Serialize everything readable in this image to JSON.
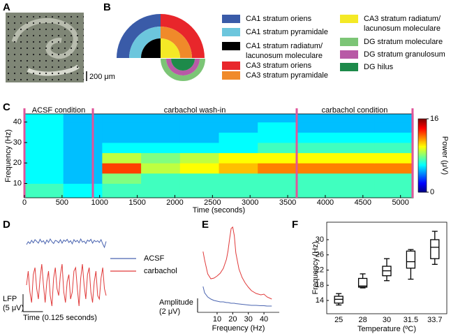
{
  "panels": {
    "a": "A",
    "b": "B",
    "c": "C",
    "d": "D",
    "e": "E",
    "f": "F"
  },
  "micrograph": {
    "scale_bar": "200 μm"
  },
  "regions": [
    {
      "lines": [
        "CA1 stratum oriens"
      ],
      "color": "#3a5ba8"
    },
    {
      "lines": [
        "CA1 stratum pyramidale"
      ],
      "color": "#6cc6dd"
    },
    {
      "lines": [
        "CA1 stratum radiatum/",
        "lacunosum moleculare"
      ],
      "color": "#000000"
    },
    {
      "lines": [
        "CA3 stratum oriens"
      ],
      "color": "#e8262b"
    },
    {
      "lines": [
        "CA3 stratum pyramidale"
      ],
      "color": "#f08a2a"
    },
    {
      "lines": [
        "CA3 stratum radiatum/",
        "lacunosum moleculare"
      ],
      "color": "#f4e926"
    },
    {
      "lines": [
        "DG stratum moleculare"
      ],
      "color": "#7cc576"
    },
    {
      "lines": [
        "DG stratum granulosum"
      ],
      "color": "#b85aa6"
    },
    {
      "lines": [
        "DG hilus"
      ],
      "color": "#1d8a4a"
    }
  ],
  "chart_data": [
    {
      "type": "heatmap",
      "xlabel": "Time (seconds)",
      "ylabel": "Frequency (Hz)",
      "x_bins": [
        0,
        517,
        1034,
        1551,
        2068,
        2585,
        3102,
        3619,
        4136,
        4653,
        5170
      ],
      "y_bins": [
        3,
        10,
        15,
        20,
        25,
        30,
        35,
        40,
        44
      ],
      "z": [
        [
          7,
          6,
          7,
          7,
          7,
          7,
          7,
          7,
          7,
          7
        ],
        [
          6,
          5,
          8,
          7,
          7,
          7,
          7,
          7,
          7,
          7
        ],
        [
          6,
          5,
          13,
          9,
          10,
          11,
          12,
          12,
          12,
          12
        ],
        [
          6,
          5,
          9,
          8,
          9,
          10,
          10,
          10,
          10,
          10
        ],
        [
          6,
          5,
          6,
          6,
          6,
          6,
          7,
          7,
          7,
          7
        ],
        [
          6,
          5,
          5,
          5,
          5,
          6,
          6,
          6,
          6,
          6
        ],
        [
          6,
          5,
          5,
          5,
          5,
          5,
          6,
          5,
          5,
          5
        ],
        [
          6,
          5,
          5,
          5,
          5,
          5,
          5,
          5,
          5,
          5
        ]
      ],
      "xlim": [
        0,
        5170
      ],
      "xticks": [
        0,
        500,
        1000,
        1500,
        2000,
        2500,
        3000,
        3500,
        4000,
        4500,
        5000
      ],
      "ylim": [
        3,
        44
      ],
      "yticks": [
        10,
        20,
        30,
        40
      ],
      "colormap": "jet",
      "clim": [
        0,
        16
      ],
      "cticks": [
        0,
        16
      ],
      "clabel": "Power (μV)",
      "markers": [
        0,
        910,
        3620,
        5160
      ],
      "marker_color": "#e0559a",
      "phases": [
        "ACSF condition",
        "carbachol wash-in",
        "carbachol condition"
      ]
    },
    {
      "type": "line",
      "xlim": [
        0,
        0.5
      ],
      "series": [
        {
          "name": "ACSF",
          "color": "#4a64b0",
          "values": [
            0,
            0.8,
            0.3,
            1.2,
            0.5,
            1.4,
            0.9,
            0.4,
            1.5,
            0.7,
            1.1,
            0.2,
            1.3,
            0.6,
            1.6,
            0.8,
            0.3,
            1.2,
            1.0,
            0.5,
            1.4,
            0.4,
            1.3,
            0.9,
            1.5,
            0.6,
            1.1,
            0.2,
            1.4,
            0.8,
            1.2,
            0.5,
            1.6,
            0.7,
            1.0,
            0.3,
            1.3,
            0.9,
            1.5,
            0.4,
            1.2,
            0.8,
            1.1,
            0.6,
            1.4,
            0.2,
            -0.8,
            0.9
          ]
        },
        {
          "name": "carbachol",
          "color": "#e03a3a",
          "values": [
            0,
            4,
            -2,
            -5,
            3,
            5,
            -1,
            -4,
            2,
            6,
            0,
            -5,
            1,
            4,
            -3,
            -6,
            2,
            5,
            -1,
            -3,
            3,
            6,
            -2,
            -5,
            1,
            3,
            -4,
            -2,
            4,
            5,
            -1,
            -6,
            2,
            6,
            0,
            -4,
            3,
            5,
            -2,
            -5,
            1,
            4,
            -3,
            -4,
            2,
            5,
            -1,
            -3
          ]
        }
      ],
      "y_scale_label": "LFP",
      "y_scale_bar": {
        "value": 5,
        "label": "(5 μV)"
      },
      "x_scale_bar": {
        "value": 0.125,
        "label": "Time (0.125 seconds)"
      }
    },
    {
      "type": "line",
      "xlabel": "Frequency (Hz)",
      "ylabel": "Amplitude",
      "x": [
        1,
        2,
        4,
        6,
        8,
        10,
        12,
        14,
        16,
        17,
        18,
        19,
        20,
        21,
        22,
        24,
        26,
        28,
        30,
        32,
        35,
        38,
        40,
        42,
        45
      ],
      "series": [
        {
          "color": "#4a64b0",
          "values": [
            3.7,
            2.8,
            2.2,
            1.9,
            1.7,
            1.6,
            1.5,
            1.5,
            1.4,
            1.4,
            1.35,
            1.3,
            1.3,
            1.3,
            1.25,
            1.2,
            1.15,
            1.1,
            1.05,
            1.0,
            1.0,
            0.95,
            0.95,
            0.9,
            0.9
          ]
        },
        {
          "color": "#e03a3a",
          "values": [
            8.7,
            7.5,
            5.5,
            4.8,
            4.9,
            5.2,
            5.6,
            6.3,
            7.6,
            8.8,
            10.5,
            12.0,
            12.2,
            11.0,
            8.5,
            6.2,
            5.0,
            4.2,
            3.6,
            3.1,
            2.7,
            2.5,
            2.6,
            2.2,
            1.9
          ]
        }
      ],
      "xlim": [
        -2.5,
        49.8
      ],
      "xticks": [
        10,
        20,
        30,
        40
      ],
      "ylim": [
        0,
        13
      ],
      "y_scale_bar": {
        "value": 2,
        "label": "(2 μV)"
      }
    },
    {
      "type": "box",
      "xlabel": "Temperature (ºC)",
      "ylabel": "Frequency (Hz)",
      "categories": [
        "25",
        "28",
        "30",
        "31.5",
        "33.7"
      ],
      "boxes": [
        {
          "min": 12.8,
          "q1": 13.3,
          "median": 14.3,
          "q3": 15.1,
          "max": 15.8
        },
        {
          "min": 17.3,
          "q1": 17.5,
          "median": 17.8,
          "q3": 19.8,
          "max": 21.0
        },
        {
          "min": 19.2,
          "q1": 20.5,
          "median": 21.8,
          "q3": 23.0,
          "max": 25.0
        },
        {
          "min": 19.6,
          "q1": 22.5,
          "median": 24.2,
          "q3": 27.0,
          "max": 27.4
        },
        {
          "min": 23.5,
          "q1": 25.0,
          "median": 28.0,
          "q3": 30.0,
          "max": 32.2
        }
      ],
      "ylim": [
        10.5,
        34.6
      ],
      "yticks": [
        14,
        18,
        22,
        26,
        30
      ],
      "color": "#000000"
    }
  ]
}
